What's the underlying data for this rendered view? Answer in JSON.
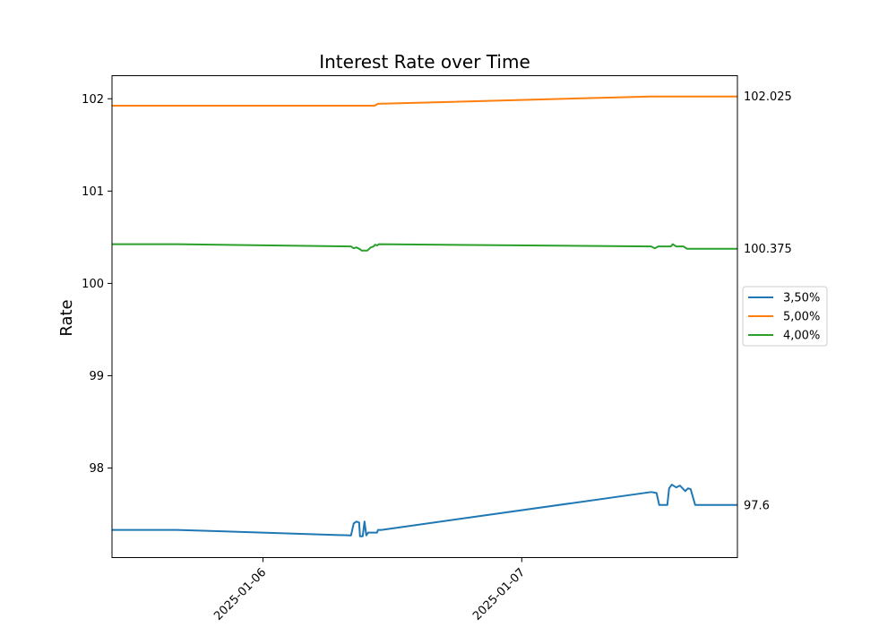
{
  "chart_data": {
    "type": "line",
    "title": "Interest Rate over Time",
    "xlabel": "",
    "ylabel": "Rate",
    "x_axis": {
      "type": "date",
      "range": [
        "2025-01-05T10:00",
        "2025-01-07T20:00"
      ],
      "ticks": [
        {
          "value": "2025-01-06T00:00",
          "label": "2025-01-06"
        },
        {
          "value": "2025-01-07T00:00",
          "label": "2025-01-07"
        }
      ]
    },
    "y_axis": {
      "range": [
        97.03,
        102.25
      ],
      "ticks": [
        98,
        99,
        100,
        101,
        102
      ]
    },
    "grid": false,
    "legend": "center-right, outside plot",
    "end_labels": true,
    "series": [
      {
        "name": "3,50%",
        "color": "#1f77b4",
        "end_label": "97.6",
        "points": [
          [
            "2025-01-05T10:00",
            97.33
          ],
          [
            "2025-01-05T16:00",
            97.33
          ],
          [
            "2025-01-06T08:10",
            97.27
          ],
          [
            "2025-01-06T08:25",
            97.4
          ],
          [
            "2025-01-06T08:40",
            97.42
          ],
          [
            "2025-01-06T08:55",
            97.41
          ],
          [
            "2025-01-06T09:00",
            97.26
          ],
          [
            "2025-01-06T09:15",
            97.26
          ],
          [
            "2025-01-06T09:25",
            97.42
          ],
          [
            "2025-01-06T09:35",
            97.27
          ],
          [
            "2025-01-06T09:45",
            97.3
          ],
          [
            "2025-01-06T10:35",
            97.3
          ],
          [
            "2025-01-06T10:40",
            97.33
          ],
          [
            "2025-01-06T11:00",
            97.33
          ],
          [
            "2025-01-07T12:00",
            97.74
          ],
          [
            "2025-01-07T12:30",
            97.73
          ],
          [
            "2025-01-07T12:45",
            97.6
          ],
          [
            "2025-01-07T13:30",
            97.6
          ],
          [
            "2025-01-07T13:40",
            97.78
          ],
          [
            "2025-01-07T13:55",
            97.82
          ],
          [
            "2025-01-07T14:20",
            97.79
          ],
          [
            "2025-01-07T14:40",
            97.81
          ],
          [
            "2025-01-07T15:10",
            97.75
          ],
          [
            "2025-01-07T15:25",
            97.78
          ],
          [
            "2025-01-07T15:40",
            97.77
          ],
          [
            "2025-01-07T16:05",
            97.6
          ],
          [
            "2025-01-07T20:00",
            97.6
          ]
        ]
      },
      {
        "name": "5,00%",
        "color": "#ff7f0e",
        "end_label": "102.025",
        "points": [
          [
            "2025-01-05T10:00",
            101.925
          ],
          [
            "2025-01-06T10:20",
            101.925
          ],
          [
            "2025-01-06T10:40",
            101.945
          ],
          [
            "2025-01-07T12:00",
            102.025
          ],
          [
            "2025-01-07T20:00",
            102.025
          ]
        ]
      },
      {
        "name": "4,00%",
        "color": "#2ca02c",
        "end_label": "100.375",
        "points": [
          [
            "2025-01-05T10:00",
            100.425
          ],
          [
            "2025-01-05T16:00",
            100.425
          ],
          [
            "2025-01-06T08:10",
            100.4
          ],
          [
            "2025-01-06T08:25",
            100.38
          ],
          [
            "2025-01-06T08:40",
            100.39
          ],
          [
            "2025-01-06T09:00",
            100.37
          ],
          [
            "2025-01-06T09:10",
            100.355
          ],
          [
            "2025-01-06T09:40",
            100.355
          ],
          [
            "2025-01-06T10:00",
            100.39
          ],
          [
            "2025-01-06T10:15",
            100.4
          ],
          [
            "2025-01-06T10:25",
            100.42
          ],
          [
            "2025-01-06T10:35",
            100.41
          ],
          [
            "2025-01-06T10:45",
            100.425
          ],
          [
            "2025-01-07T12:00",
            100.4
          ],
          [
            "2025-01-07T12:20",
            100.38
          ],
          [
            "2025-01-07T12:40",
            100.4
          ],
          [
            "2025-01-07T13:50",
            100.4
          ],
          [
            "2025-01-07T14:00",
            100.425
          ],
          [
            "2025-01-07T14:20",
            100.4
          ],
          [
            "2025-01-07T15:00",
            100.4
          ],
          [
            "2025-01-07T15:20",
            100.375
          ],
          [
            "2025-01-07T20:00",
            100.375
          ]
        ]
      }
    ]
  }
}
